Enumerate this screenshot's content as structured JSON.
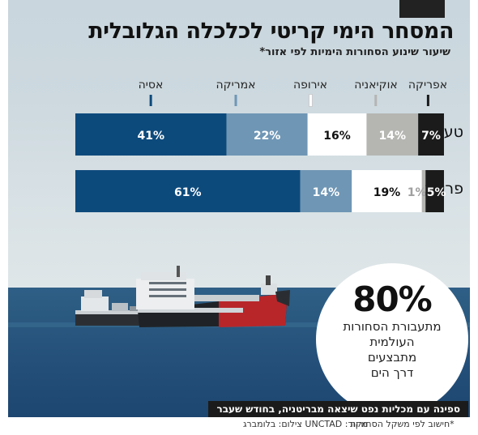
{
  "title": "המסחר הימי קריטי לכלכלה הגלובלית",
  "subtitle": "שיעור שינוע הסחורות הימיות לפי אזור*",
  "chart_data": {
    "type": "bar",
    "orientation": "horizontal-stacked-100",
    "categories": [
      "טעינה",
      "פריקה"
    ],
    "series": [
      {
        "name": "אסיה",
        "color": "#0d4a7c",
        "values": [
          41,
          61
        ],
        "labels": [
          "41%",
          "61%"
        ]
      },
      {
        "name": "אמריקה",
        "color": "#6f96b5",
        "values": [
          22,
          14
        ],
        "labels": [
          "22%",
          "14%"
        ]
      },
      {
        "name": "אירופה",
        "color": "#ffffff",
        "values": [
          16,
          19
        ],
        "labels": [
          "16%",
          "19%"
        ]
      },
      {
        "name": "אוקיאניה",
        "color": "#b5b5b2",
        "values": [
          14,
          1
        ],
        "labels": [
          "14%",
          "1%"
        ]
      },
      {
        "name": "אפריקה",
        "color": "#1b1b1b",
        "values": [
          7,
          5
        ],
        "labels": [
          "7%",
          "5%"
        ]
      }
    ],
    "legend_placement": "top"
  },
  "highlight": {
    "value": "80%",
    "lines": [
      "מתעבורת הסחורות",
      "העולמית",
      "מתבצעים",
      "דרך הים"
    ]
  },
  "photo_caption": "ספינה עם מכליות נפט שיצאה מבריטניה, בחודש שעבר",
  "footnote": "*חישוב לפי משקל הסחורות",
  "credits": "מקור: UNCTAD  צילום: בלומברג"
}
